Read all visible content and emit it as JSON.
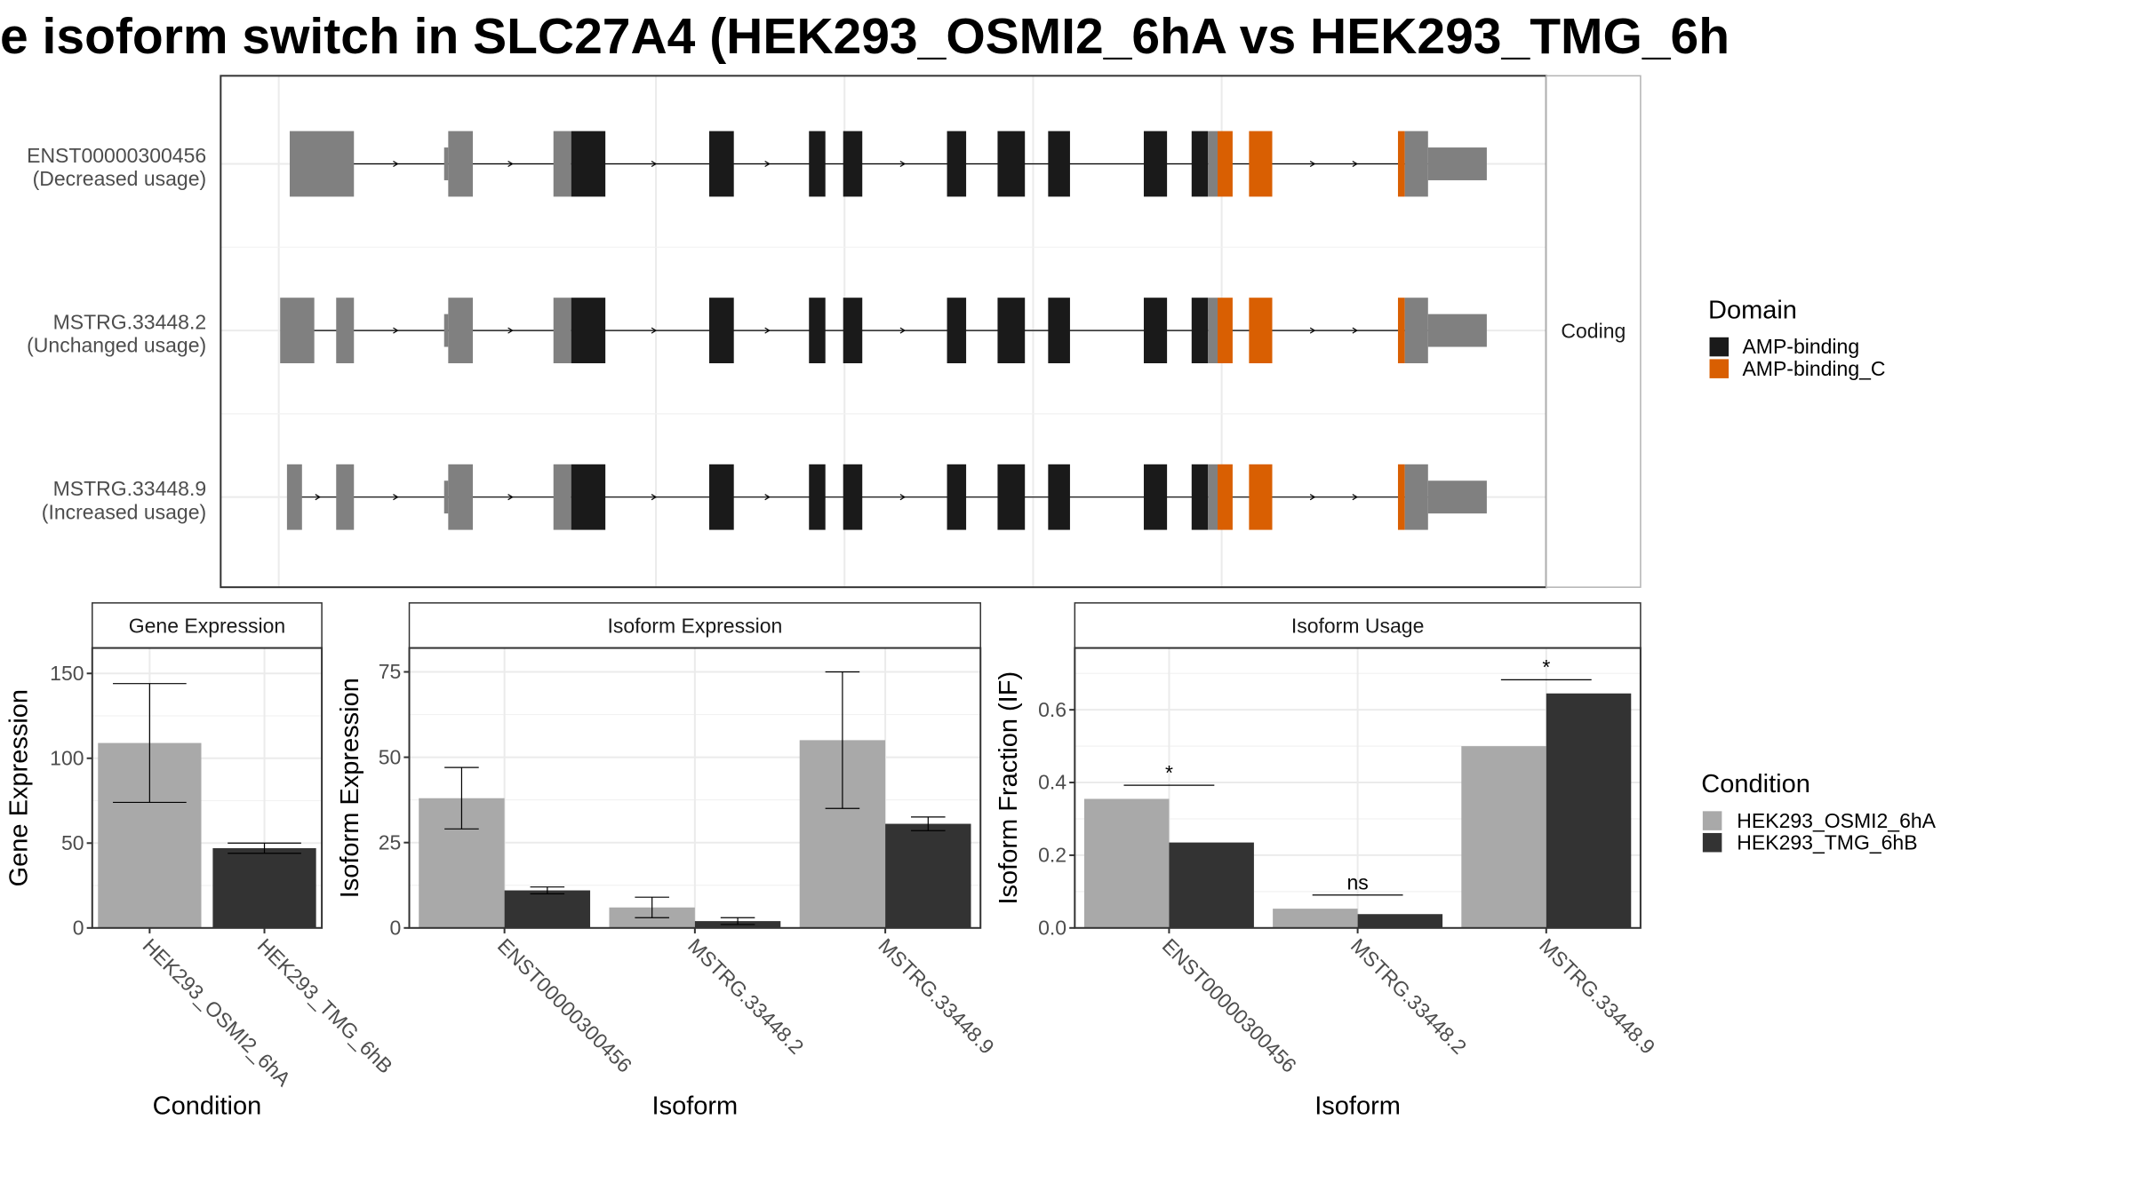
{
  "title": "e isoform switch in SLC27A4 (HEK293_OSMI2_6hA vs HEK293_TMG_6h",
  "colors": {
    "utr": "#808080",
    "amp_binding": "#1a1a1a",
    "amp_binding_c": "#d95f02",
    "condition_a": "#a9a9a9",
    "condition_b": "#333333"
  },
  "chart_data": [
    {
      "type": "gene-structure",
      "facet_label": "Coding",
      "isoforms": [
        {
          "name": "ENST00000300456",
          "usage": "(Decreased usage)"
        },
        {
          "name": "MSTRG.33448.2",
          "usage": "(Unchanged usage)"
        },
        {
          "name": "MSTRG.33448.9",
          "usage": "(Increased usage)"
        }
      ],
      "legend": {
        "title": "Domain",
        "placement": "right",
        "items": [
          {
            "label": "AMP-binding",
            "color": "#1a1a1a"
          },
          {
            "label": "AMP-binding_C",
            "color": "#d95f02"
          }
        ]
      }
    },
    {
      "type": "bar",
      "title": "Gene Expression",
      "xlabel": "Condition",
      "ylabel": "Gene Expression",
      "ylim": [
        0,
        165
      ],
      "yticks": [
        0,
        50,
        100,
        150
      ],
      "categories": [
        "HEK293_OSMI2_6hA",
        "HEK293_TMG_6hB"
      ],
      "series": [
        {
          "values": [
            109,
            47
          ],
          "error": [
            35,
            3
          ]
        }
      ]
    },
    {
      "type": "bar",
      "title": "Isoform Expression",
      "xlabel": "Isoform",
      "ylabel": "Isoform Expression",
      "ylim": [
        0,
        82
      ],
      "yticks": [
        0,
        25,
        50,
        75
      ],
      "categories": [
        "ENST00000300456",
        "MSTRG.33448.2",
        "MSTRG.33448.9"
      ],
      "series": [
        {
          "name": "HEK293_OSMI2_6hA",
          "values": [
            38,
            6,
            55
          ],
          "error": [
            9,
            3,
            20
          ]
        },
        {
          "name": "HEK293_TMG_6hB",
          "values": [
            11,
            2,
            30.5
          ],
          "error": [
            1,
            1,
            2
          ]
        }
      ]
    },
    {
      "type": "bar",
      "title": "Isoform Usage",
      "xlabel": "Isoform",
      "ylabel": "Isoform Fraction (IF)",
      "ylim": [
        0,
        0.77
      ],
      "yticks": [
        "0.0",
        "0.2",
        "0.4",
        "0.6"
      ],
      "categories": [
        "ENST00000300456",
        "MSTRG.33448.2",
        "MSTRG.33448.9"
      ],
      "series": [
        {
          "name": "HEK293_OSMI2_6hA",
          "values": [
            0.355,
            0.053,
            0.5
          ]
        },
        {
          "name": "HEK293_TMG_6hB",
          "values": [
            0.235,
            0.038,
            0.645
          ]
        }
      ],
      "significance": [
        "*",
        "ns",
        "*"
      ]
    }
  ],
  "condition_legend": {
    "title": "Condition",
    "placement": "right",
    "items": [
      {
        "label": "HEK293_OSMI2_6hA",
        "color": "#a9a9a9"
      },
      {
        "label": "HEK293_TMG_6hB",
        "color": "#333333"
      }
    ]
  }
}
